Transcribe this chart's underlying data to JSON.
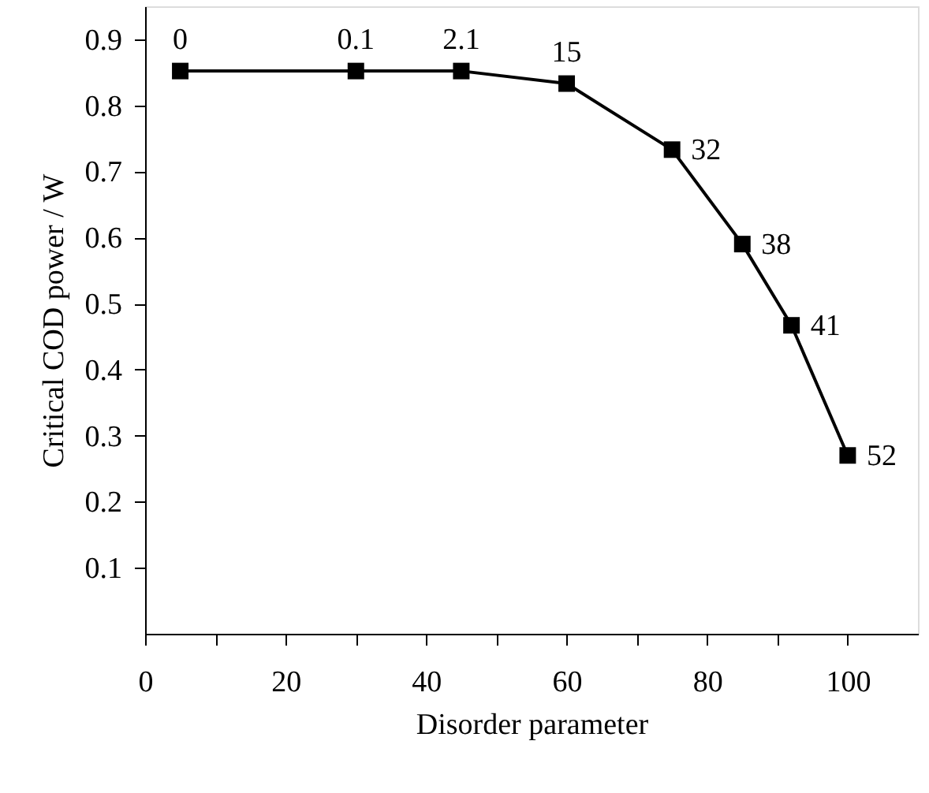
{
  "chart_data": {
    "type": "line",
    "xlabel": "Disorder parameter",
    "ylabel": "Critical COD power / W",
    "x": [
      5,
      30,
      45,
      60,
      75,
      85,
      92,
      100
    ],
    "series": [
      {
        "color": "#000000",
        "values": [
          0.852,
          0.852,
          0.852,
          0.833,
          0.733,
          0.59,
          0.467,
          0.27
        ]
      }
    ],
    "marker": "square",
    "line_style": "solid",
    "grid": false,
    "xlim": [
      0,
      110
    ],
    "ylim": [
      0,
      0.95
    ],
    "xticks": [
      0,
      {
        "value": 10,
        "label": null
      },
      20,
      {
        "value": 30,
        "label": null
      },
      40,
      {
        "value": 50,
        "label": null
      },
      60,
      {
        "value": 70,
        "label": null
      },
      80,
      {
        "value": 90,
        "label": null
      },
      100
    ],
    "yticks": [
      0.1,
      0.2,
      0.3,
      0.4,
      0.5,
      0.6,
      0.7,
      0.8,
      0.9
    ],
    "annotations": [
      {
        "text": "0",
        "x": 5,
        "y": 0.852
      },
      {
        "text": "0.1",
        "x": 30,
        "y": 0.852
      },
      {
        "text": "2.1",
        "x": 45,
        "y": 0.852
      },
      {
        "text": "15",
        "x": 60,
        "y": 0.833
      },
      {
        "text": "32",
        "x": 75,
        "y": 0.733
      },
      {
        "text": "38",
        "x": 85,
        "y": 0.59
      },
      {
        "text": "41",
        "x": 92,
        "y": 0.467
      },
      {
        "text": "52",
        "x": 100,
        "y": 0.27
      }
    ]
  }
}
